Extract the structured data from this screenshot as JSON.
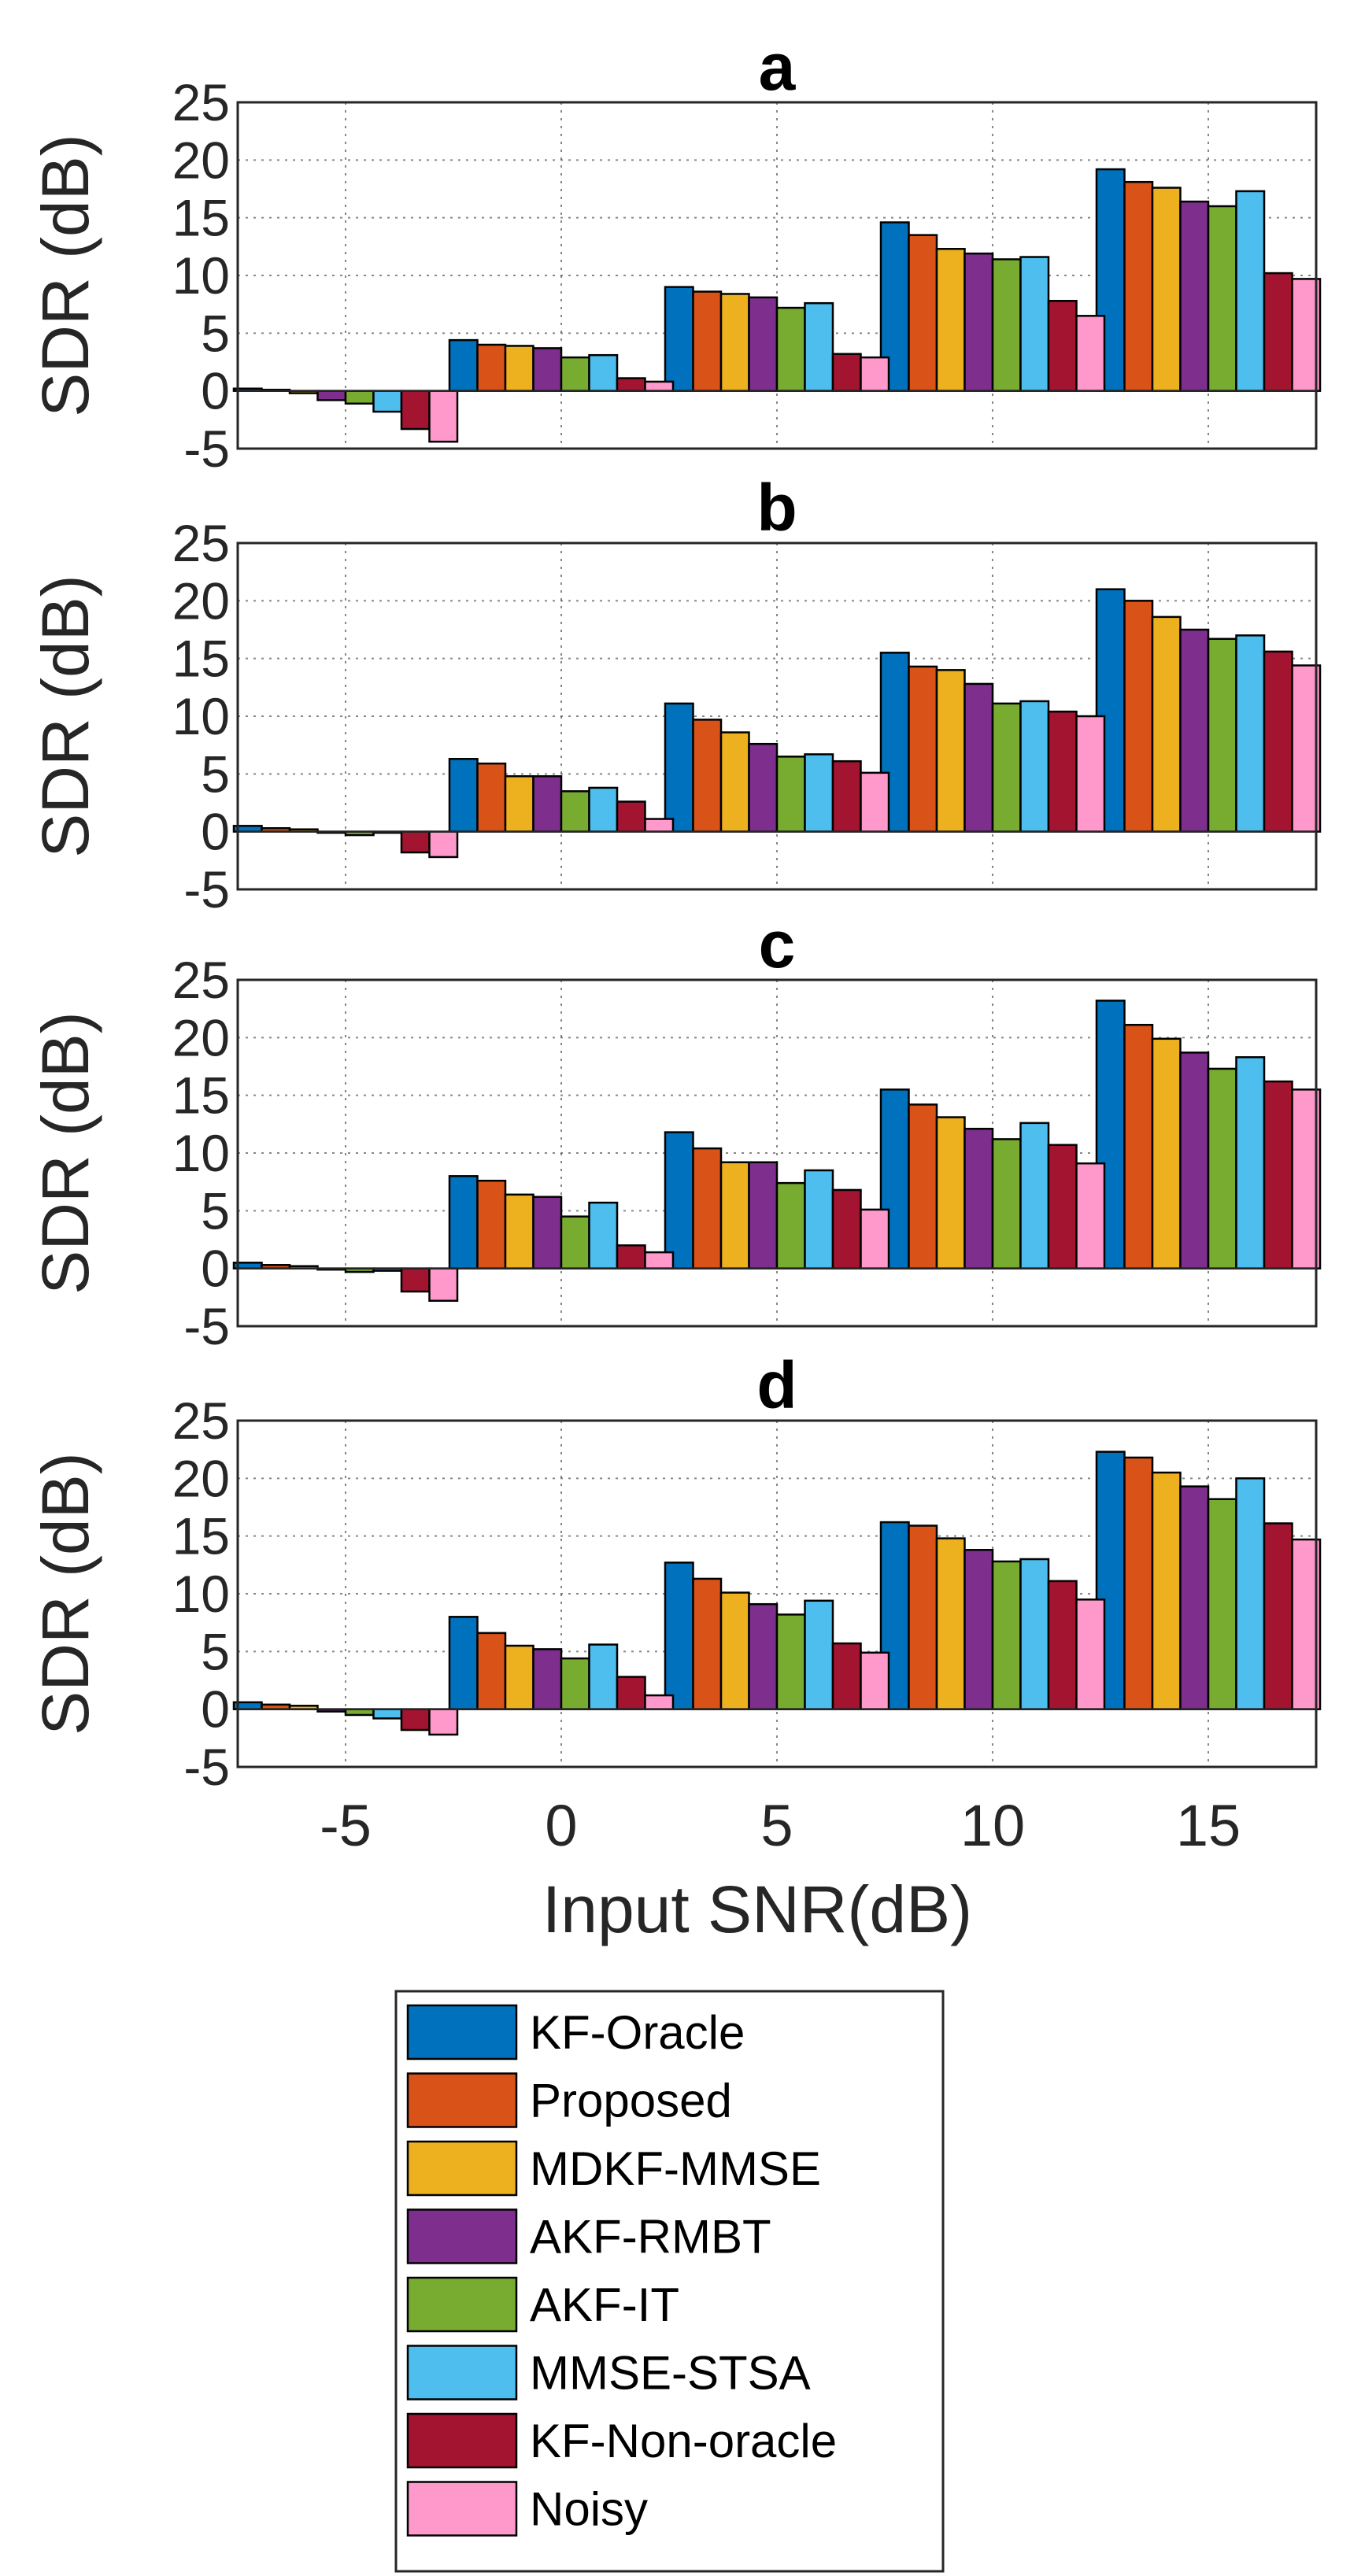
{
  "chart_data": {
    "type": "bar",
    "xlabel": "Input SNR(dB)",
    "ylabel": "SDR (dB)",
    "categories": [
      "-5",
      "0",
      "5",
      "10",
      "15"
    ],
    "yticks": [
      "-5",
      "0",
      "5",
      "10",
      "15",
      "20",
      "25"
    ],
    "ylim": [
      -5,
      25
    ],
    "grid": true,
    "legend_position": "bottom",
    "legend": [
      {
        "name": "KF-Oracle",
        "color": "#0072BD"
      },
      {
        "name": "Proposed",
        "color": "#D95319"
      },
      {
        "name": "MDKF-MMSE",
        "color": "#EDB120"
      },
      {
        "name": "AKF-RMBT",
        "color": "#7E2F8E"
      },
      {
        "name": "AKF-IT",
        "color": "#77AC30"
      },
      {
        "name": "MMSE-STSA",
        "color": "#4DBEEE"
      },
      {
        "name": "KF-Non-oracle",
        "color": "#A2142F"
      },
      {
        "name": "Noisy",
        "color": "#FF99CC"
      }
    ],
    "panels": [
      {
        "title": "a",
        "series": [
          {
            "name": "KF-Oracle",
            "values": [
              0.2,
              4.4,
              9.0,
              14.6,
              19.2
            ]
          },
          {
            "name": "Proposed",
            "values": [
              0.1,
              4.0,
              8.6,
              13.5,
              18.1
            ]
          },
          {
            "name": "MDKF-MMSE",
            "values": [
              -0.2,
              3.9,
              8.4,
              12.3,
              17.6
            ]
          },
          {
            "name": "AKF-RMBT",
            "values": [
              -0.8,
              3.7,
              8.1,
              11.9,
              16.4
            ]
          },
          {
            "name": "AKF-IT",
            "values": [
              -1.1,
              2.9,
              7.2,
              11.4,
              16.0
            ]
          },
          {
            "name": "MMSE-STSA",
            "values": [
              -1.8,
              3.1,
              7.6,
              11.6,
              17.3
            ]
          },
          {
            "name": "KF-Non-oracle",
            "values": [
              -3.3,
              1.1,
              3.2,
              7.8,
              10.2
            ]
          },
          {
            "name": "Noisy",
            "values": [
              -4.4,
              0.8,
              2.9,
              6.5,
              9.7
            ]
          }
        ]
      },
      {
        "title": "b",
        "series": [
          {
            "name": "KF-Oracle",
            "values": [
              0.5,
              6.3,
              11.1,
              15.5,
              21.0
            ]
          },
          {
            "name": "Proposed",
            "values": [
              0.3,
              5.9,
              9.7,
              14.3,
              20.0
            ]
          },
          {
            "name": "MDKF-MMSE",
            "values": [
              0.2,
              4.8,
              8.6,
              14.0,
              18.6
            ]
          },
          {
            "name": "AKF-RMBT",
            "values": [
              -0.1,
              4.8,
              7.6,
              12.8,
              17.5
            ]
          },
          {
            "name": "AKF-IT",
            "values": [
              -0.3,
              3.5,
              6.5,
              11.1,
              16.7
            ]
          },
          {
            "name": "MMSE-STSA",
            "values": [
              -0.1,
              3.8,
              6.7,
              11.3,
              17.0
            ]
          },
          {
            "name": "KF-Non-oracle",
            "values": [
              -1.8,
              2.6,
              6.1,
              10.4,
              15.6
            ]
          },
          {
            "name": "Noisy",
            "values": [
              -2.2,
              1.1,
              5.1,
              10.0,
              14.4
            ]
          }
        ]
      },
      {
        "title": "c",
        "series": [
          {
            "name": "KF-Oracle",
            "values": [
              0.5,
              8.0,
              11.8,
              15.5,
              23.2
            ]
          },
          {
            "name": "Proposed",
            "values": [
              0.3,
              7.6,
              10.4,
              14.2,
              21.1
            ]
          },
          {
            "name": "MDKF-MMSE",
            "values": [
              0.2,
              6.4,
              9.2,
              13.1,
              19.9
            ]
          },
          {
            "name": "AKF-RMBT",
            "values": [
              -0.1,
              6.2,
              9.2,
              12.1,
              18.7
            ]
          },
          {
            "name": "AKF-IT",
            "values": [
              -0.3,
              4.5,
              7.4,
              11.2,
              17.3
            ]
          },
          {
            "name": "MMSE-STSA",
            "values": [
              -0.2,
              5.7,
              8.5,
              12.6,
              18.3
            ]
          },
          {
            "name": "KF-Non-oracle",
            "values": [
              -2.0,
              2.0,
              6.8,
              10.7,
              16.2
            ]
          },
          {
            "name": "Noisy",
            "values": [
              -2.8,
              1.4,
              5.1,
              9.1,
              15.5
            ]
          }
        ]
      },
      {
        "title": "d",
        "series": [
          {
            "name": "KF-Oracle",
            "values": [
              0.6,
              8.0,
              12.7,
              16.2,
              22.3
            ]
          },
          {
            "name": "Proposed",
            "values": [
              0.4,
              6.6,
              11.3,
              15.9,
              21.8
            ]
          },
          {
            "name": "MDKF-MMSE",
            "values": [
              0.3,
              5.5,
              10.1,
              14.8,
              20.5
            ]
          },
          {
            "name": "AKF-RMBT",
            "values": [
              -0.2,
              5.2,
              9.1,
              13.8,
              19.3
            ]
          },
          {
            "name": "AKF-IT",
            "values": [
              -0.5,
              4.4,
              8.2,
              12.8,
              18.2
            ]
          },
          {
            "name": "MMSE-STSA",
            "values": [
              -0.8,
              5.6,
              9.4,
              13.0,
              20.0
            ]
          },
          {
            "name": "KF-Non-oracle",
            "values": [
              -1.8,
              2.8,
              5.7,
              11.1,
              16.1
            ]
          },
          {
            "name": "Noisy",
            "values": [
              -2.2,
              1.2,
              4.9,
              9.5,
              14.7
            ]
          }
        ]
      }
    ]
  }
}
